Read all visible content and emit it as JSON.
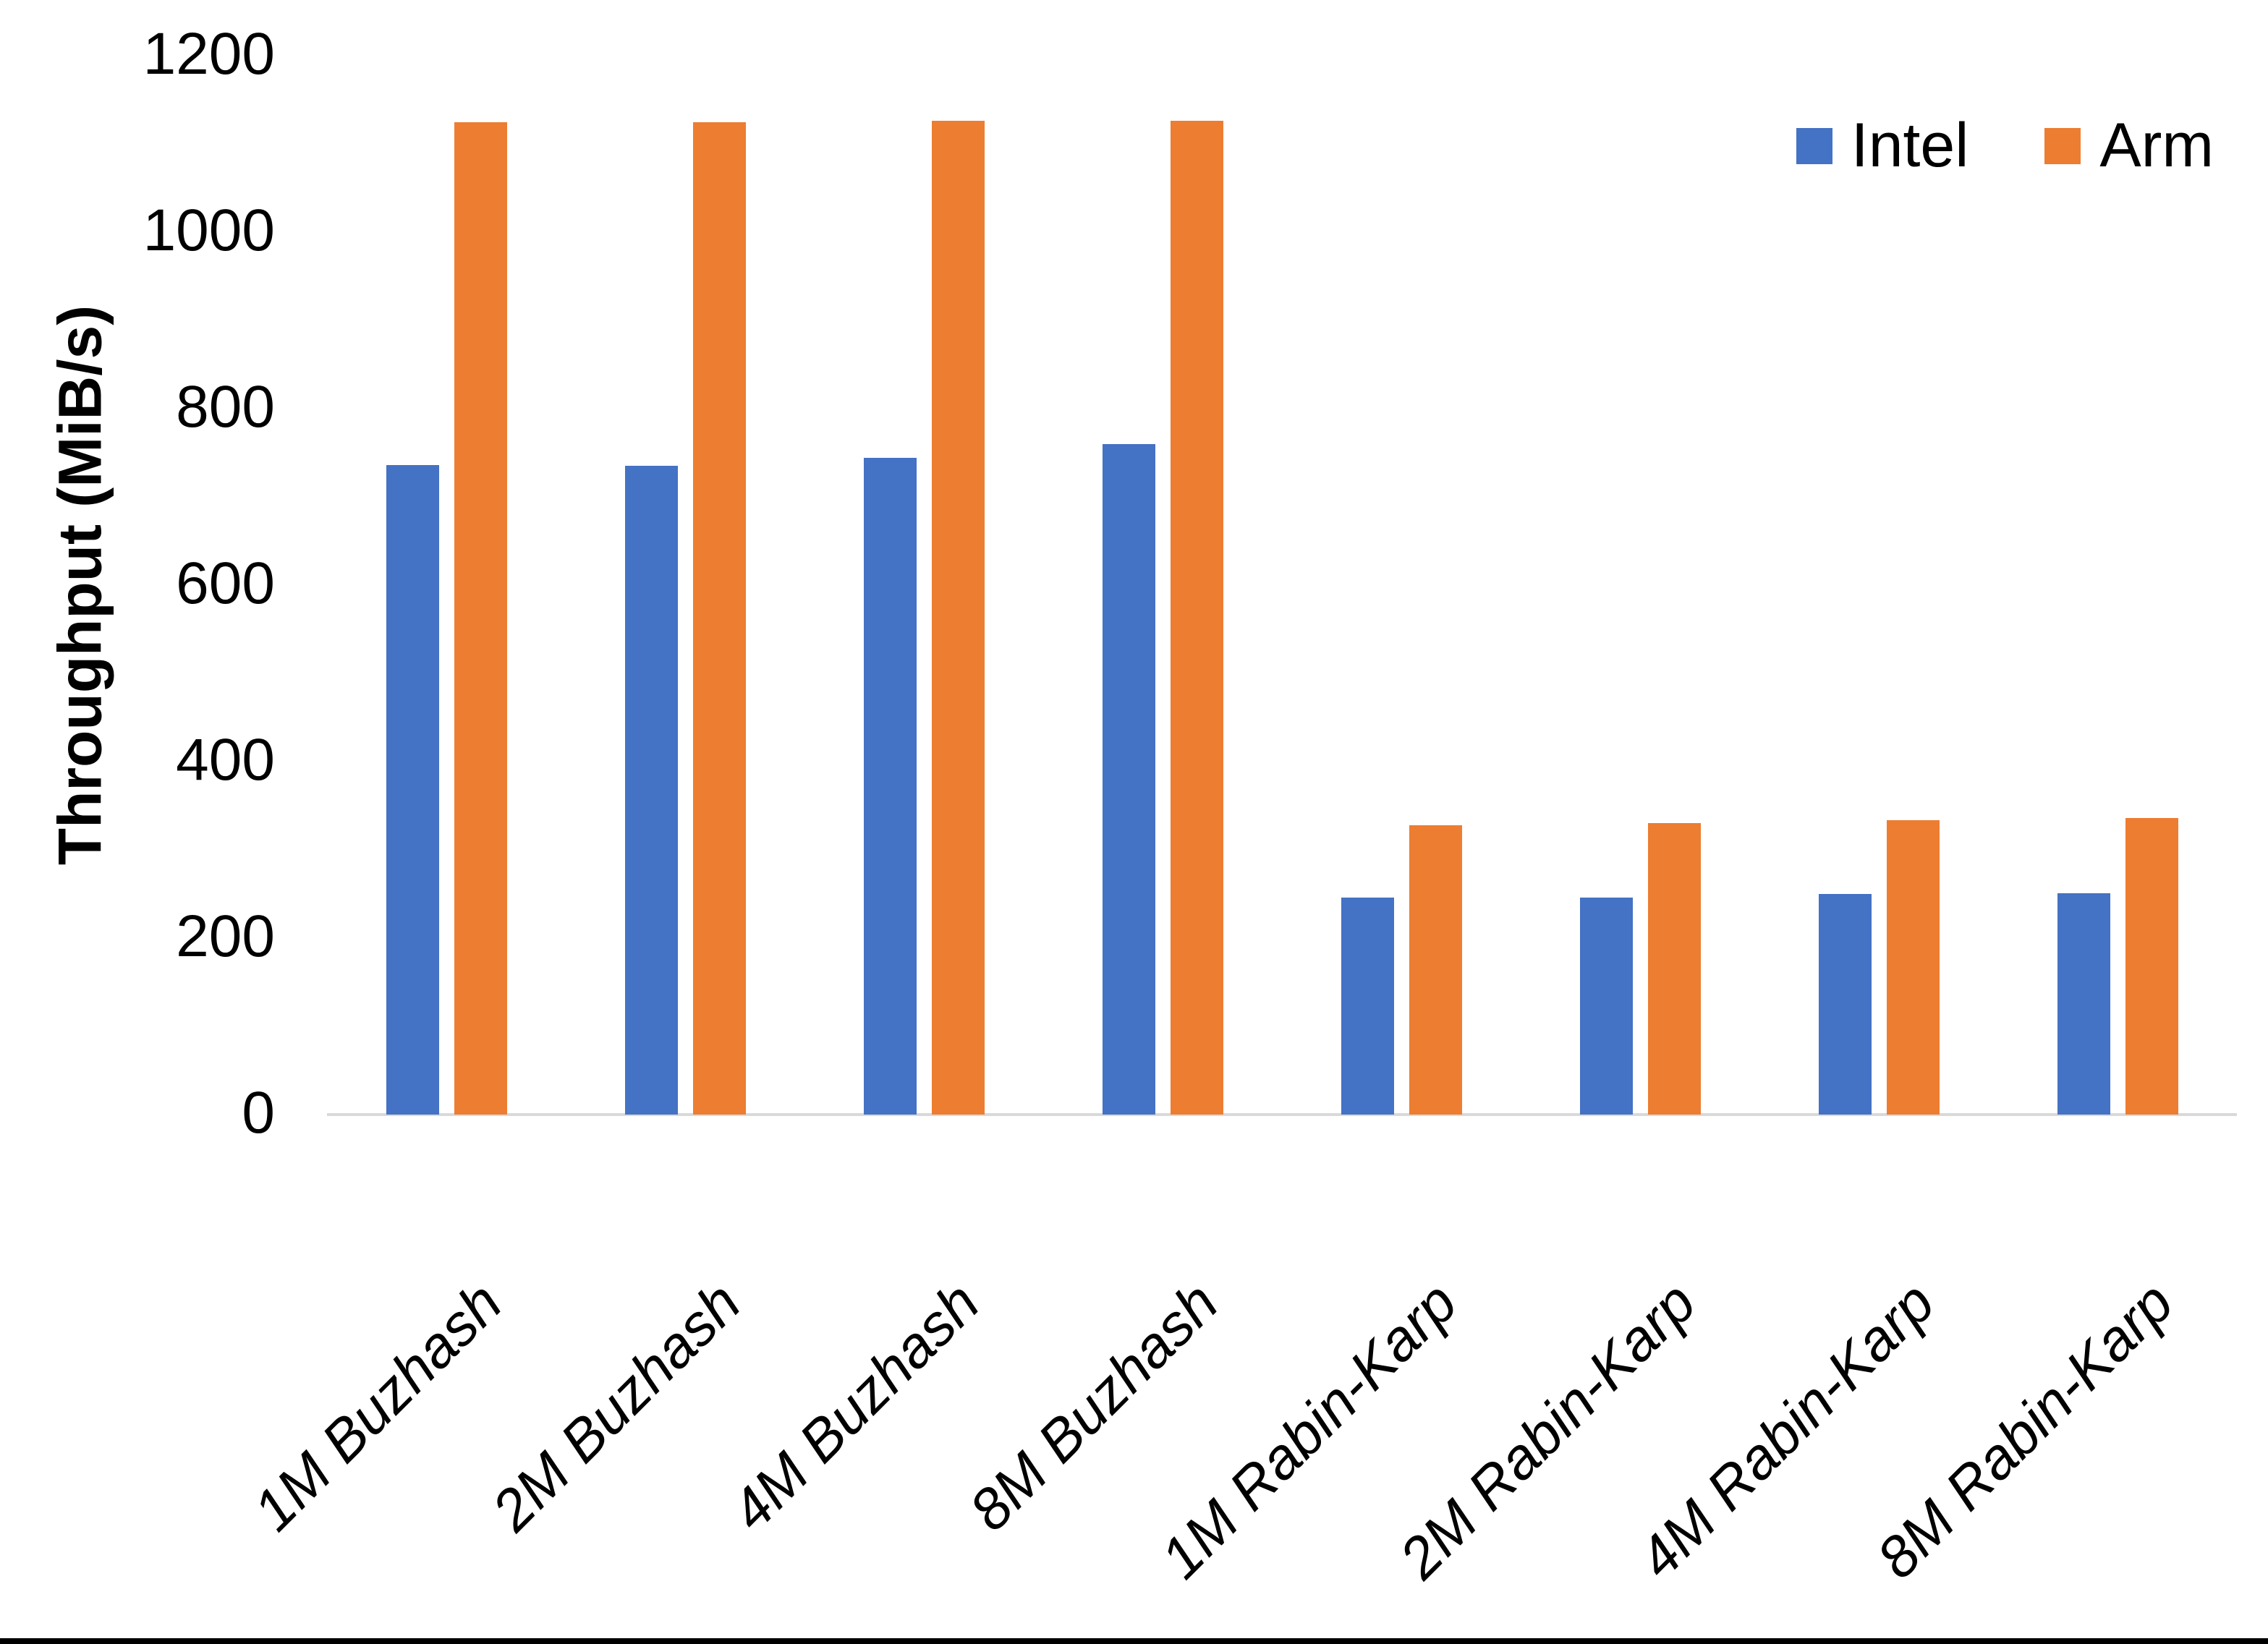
{
  "chart_data": {
    "type": "bar",
    "title": "",
    "xlabel": "",
    "ylabel": "Throughput (MiB/s)",
    "ylim": [
      0,
      1200
    ],
    "ytick_step": 200,
    "ytick_labels": [
      "0",
      "200",
      "400",
      "600",
      "800",
      "1000",
      "1200"
    ],
    "grid": false,
    "legend_position": "top-right",
    "categories": [
      "1M Buzhash",
      "2M Buzhash",
      "4M Buzhash",
      "8M Buzhash",
      "1M Rabin-Karp",
      "2M Rabin-Karp",
      "4M Rabin-Karp",
      "8M Rabin-Karp"
    ],
    "series": [
      {
        "name": "Intel",
        "color": "#4472C4",
        "values": [
          736,
          735,
          744,
          760,
          246,
          246,
          250,
          251
        ]
      },
      {
        "name": "Arm",
        "color": "#ED7D31",
        "values": [
          1125,
          1125,
          1126,
          1126,
          328,
          330,
          334,
          336
        ]
      }
    ]
  },
  "colors": {
    "axis_line": "#D9D9D9",
    "text": "#000000",
    "background": "#FFFFFF",
    "bottom_border": "#000000"
  }
}
